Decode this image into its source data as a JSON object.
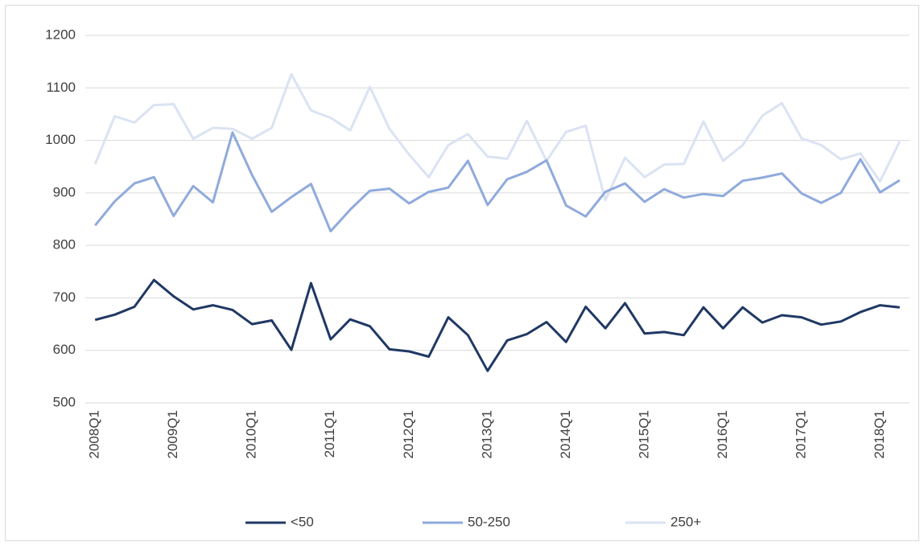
{
  "chart_data": {
    "type": "line",
    "categories": [
      "2008Q1",
      null,
      null,
      null,
      "2009Q1",
      null,
      null,
      null,
      "2010Q1",
      null,
      null,
      null,
      "2011Q1",
      null,
      null,
      null,
      "2012Q1",
      null,
      null,
      null,
      "2013Q1",
      null,
      null,
      null,
      "2014Q1",
      null,
      null,
      null,
      "2015Q1",
      null,
      null,
      null,
      "2016Q1",
      null,
      null,
      null,
      "2017Q1",
      null,
      null,
      null,
      "2018Q1",
      null
    ],
    "series": [
      {
        "name": "<50",
        "color": "#203864",
        "values": [
          658,
          668,
          683,
          734,
          703,
          678,
          686,
          677,
          650,
          657,
          601,
          728,
          621,
          659,
          646,
          602,
          598,
          588,
          663,
          629,
          561,
          619,
          631,
          654,
          616,
          683,
          642,
          690,
          632,
          635,
          629,
          682,
          642,
          682,
          653,
          667,
          663,
          649,
          655,
          673,
          686,
          682
        ]
      },
      {
        "name": "50-250",
        "color": "#8faadc",
        "values": [
          838,
          884,
          918,
          930,
          856,
          913,
          882,
          1015,
          934,
          864,
          892,
          917,
          827,
          868,
          904,
          908,
          880,
          902,
          910,
          961,
          877,
          926,
          940,
          962,
          876,
          855,
          902,
          918,
          883,
          907,
          891,
          898,
          894,
          923,
          929,
          937,
          899,
          881,
          900,
          964,
          901,
          924
        ]
      },
      {
        "name": "250+",
        "color": "#dae3f3",
        "values": [
          955,
          1046,
          1034,
          1067,
          1069,
          1003,
          1024,
          1022,
          1003,
          1024,
          1126,
          1057,
          1043,
          1019,
          1102,
          1022,
          973,
          930,
          991,
          1012,
          969,
          965,
          1037,
          961,
          1016,
          1028,
          886,
          967,
          930,
          954,
          955,
          1036,
          961,
          991,
          1047,
          1071,
          1004,
          991,
          964,
          975,
          922,
          998
        ]
      }
    ],
    "ylim": [
      500,
      1200
    ],
    "yticks": [
      500,
      600,
      700,
      800,
      900,
      1000,
      1100,
      1200
    ],
    "grid": true,
    "legend": "bottom"
  }
}
